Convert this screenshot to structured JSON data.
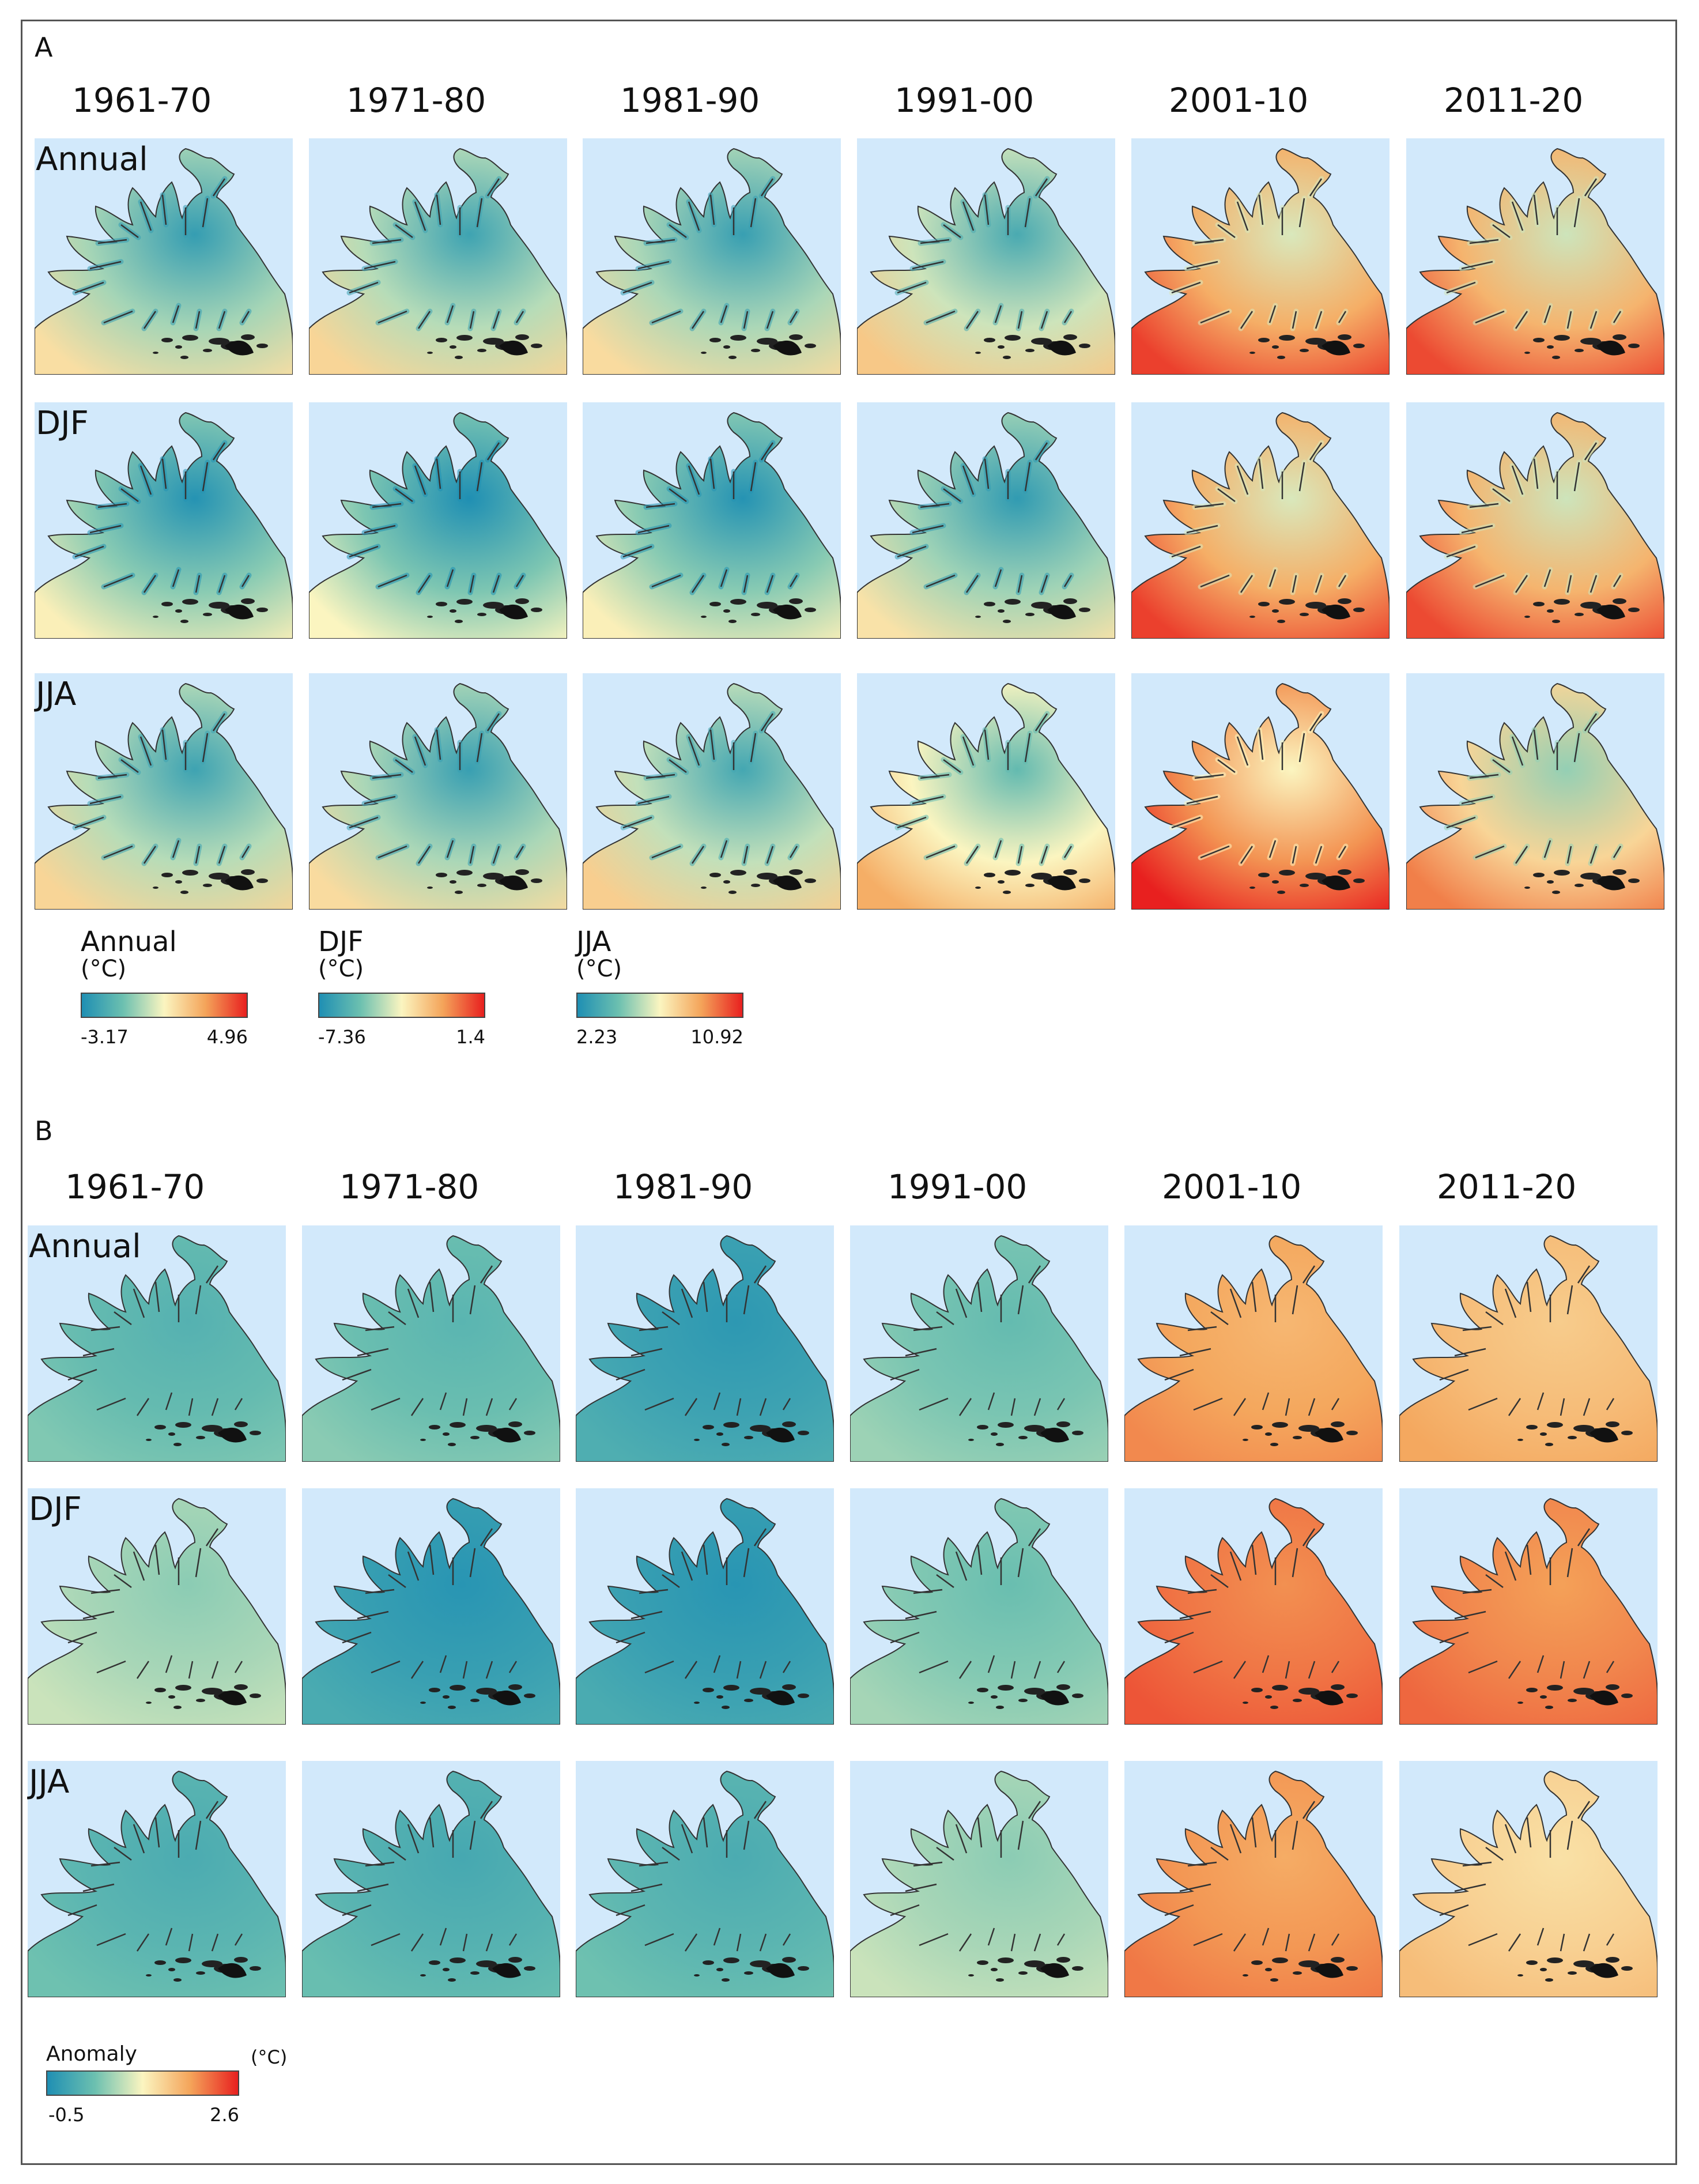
{
  "panels": [
    {
      "letter": "A",
      "type": "absolute",
      "columns": [
        "1961-70",
        "1971-80",
        "1981-90",
        "1991-00",
        "2001-10",
        "2011-20"
      ],
      "rows": [
        {
          "label": "Annual",
          "warmth": [
            0.35,
            0.38,
            0.36,
            0.42,
            0.72,
            0.7
          ]
        },
        {
          "label": "DJF",
          "warmth": [
            0.3,
            0.28,
            0.3,
            0.34,
            0.72,
            0.7
          ]
        },
        {
          "label": "JJA",
          "warmth": [
            0.38,
            0.36,
            0.4,
            0.5,
            0.78,
            0.6
          ]
        }
      ],
      "legends": [
        {
          "title": "Annual",
          "unit": "(°C)",
          "min": "-3.17",
          "max": "4.96"
        },
        {
          "title": "DJF",
          "unit": "(°C)",
          "min": "-7.36",
          "max": "1.4"
        },
        {
          "title": "JJA",
          "unit": "(°C)",
          "min": "2.23",
          "max": "10.92"
        }
      ]
    },
    {
      "letter": "B",
      "type": "anomaly",
      "columns": [
        "1961-70",
        "1971-80",
        "1981-90",
        "1991-00",
        "2001-10",
        "2011-20"
      ],
      "rows": [
        {
          "label": "Annual",
          "anomaly": [
            0.2,
            0.25,
            -0.2,
            0.35,
            1.8,
            1.6
          ]
        },
        {
          "label": "DJF",
          "anomaly": [
            0.6,
            -0.25,
            -0.25,
            0.4,
            2.1,
            2.0
          ]
        },
        {
          "label": "JJA",
          "anomaly": [
            0.1,
            0.05,
            0.1,
            0.6,
            1.9,
            1.4
          ]
        }
      ],
      "legends": [
        {
          "title": "Anomaly",
          "unit": "(°C)",
          "min": "-0.5",
          "max": "2.6"
        }
      ]
    }
  ],
  "colors": {
    "sea": "#d2e9fb",
    "scale": [
      "#1f8fb3",
      "#6cc0b0",
      "#fbf5c0",
      "#f4a45a",
      "#e8201f"
    ],
    "coast": "#333333"
  }
}
